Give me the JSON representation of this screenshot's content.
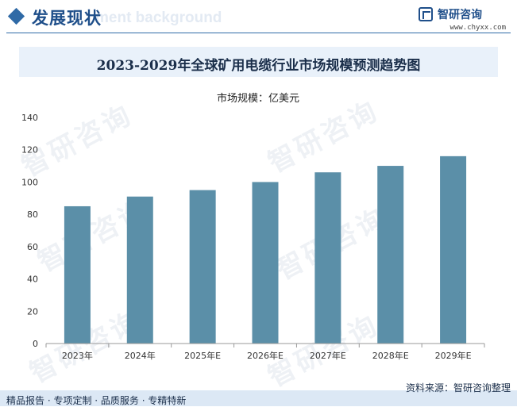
{
  "header": {
    "title": "发展现状",
    "ghost_text": "ment background",
    "brand_name": "智研咨询",
    "brand_url": "www.chyxx.com"
  },
  "watermark_text": "智研咨询",
  "colors": {
    "bar": "#5b8fa8",
    "header_accent": "#2f6aa6",
    "title_bar_bg": "#e9f1fa",
    "footer_bg": "#dce8f5"
  },
  "chart_data": {
    "type": "bar",
    "title": "2023-2029年全球矿用电缆行业市场规模预测趋势图",
    "ylabel": "市场规模：亿美元",
    "xlabel": "",
    "categories": [
      "2023年",
      "2024年",
      "2025年E",
      "2026年E",
      "2027年E",
      "2028年E",
      "2029年E"
    ],
    "values": [
      85,
      91,
      95,
      100,
      106,
      110,
      116
    ],
    "ylim": [
      0,
      140
    ],
    "yticks": [
      0,
      20,
      40,
      60,
      80,
      100,
      120,
      140
    ],
    "grid": false
  },
  "footer": {
    "source": "资料来源：智研咨询整理",
    "slogan": "精品报告 · 专项定制 · 品质服务 · 专精特新"
  }
}
